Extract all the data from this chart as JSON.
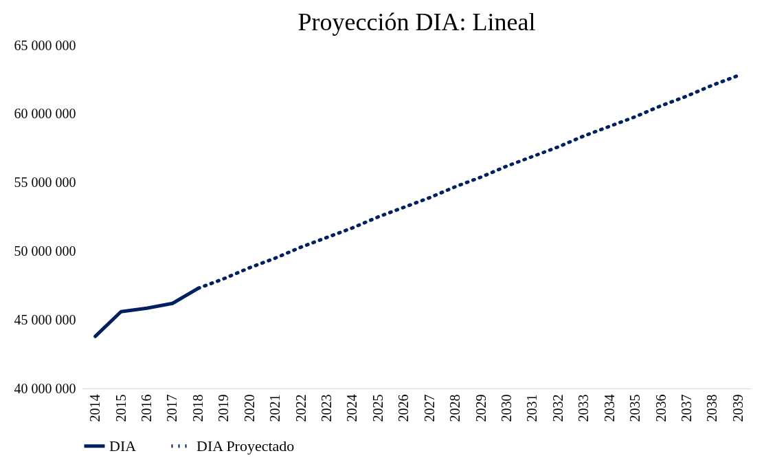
{
  "chart_data": {
    "type": "line",
    "title": "Proyección DIA: Lineal",
    "categories": [
      "2014",
      "2015",
      "2016",
      "2017",
      "2018",
      "2019",
      "2020",
      "2021",
      "2022",
      "2023",
      "2024",
      "2025",
      "2026",
      "2027",
      "2028",
      "2029",
      "2030",
      "2031",
      "2032",
      "2033",
      "2034",
      "2035",
      "2036",
      "2037",
      "2038",
      "2039"
    ],
    "series": [
      {
        "name": "DIA",
        "color": "#002060",
        "line_style": "solid",
        "values": [
          43800000,
          45600000,
          45850000,
          46200000,
          47300000,
          null,
          null,
          null,
          null,
          null,
          null,
          null,
          null,
          null,
          null,
          null,
          null,
          null,
          null,
          null,
          null,
          null,
          null,
          null,
          null,
          null
        ]
      },
      {
        "name": "DIA Proyectado",
        "color": "#002060",
        "line_style": "dotted",
        "values": [
          null,
          null,
          null,
          null,
          47300000,
          48000000,
          48800000,
          49500000,
          50300000,
          51000000,
          51700000,
          52500000,
          53200000,
          53900000,
          54700000,
          55400000,
          56200000,
          56900000,
          57600000,
          58400000,
          59100000,
          59800000,
          60600000,
          61300000,
          62100000,
          62800000
        ]
      }
    ],
    "ylim": [
      40000000,
      65000000
    ],
    "yticks": [
      {
        "value": 40000000,
        "label": "40 000 000"
      },
      {
        "value": 45000000,
        "label": "45 000 000"
      },
      {
        "value": 50000000,
        "label": "50 000 000"
      },
      {
        "value": 55000000,
        "label": "55 000 000"
      },
      {
        "value": 60000000,
        "label": "60 000 000"
      },
      {
        "value": 65000000,
        "label": "65 000 000"
      }
    ],
    "grid": false,
    "legend": "bottom",
    "marker": "none"
  }
}
